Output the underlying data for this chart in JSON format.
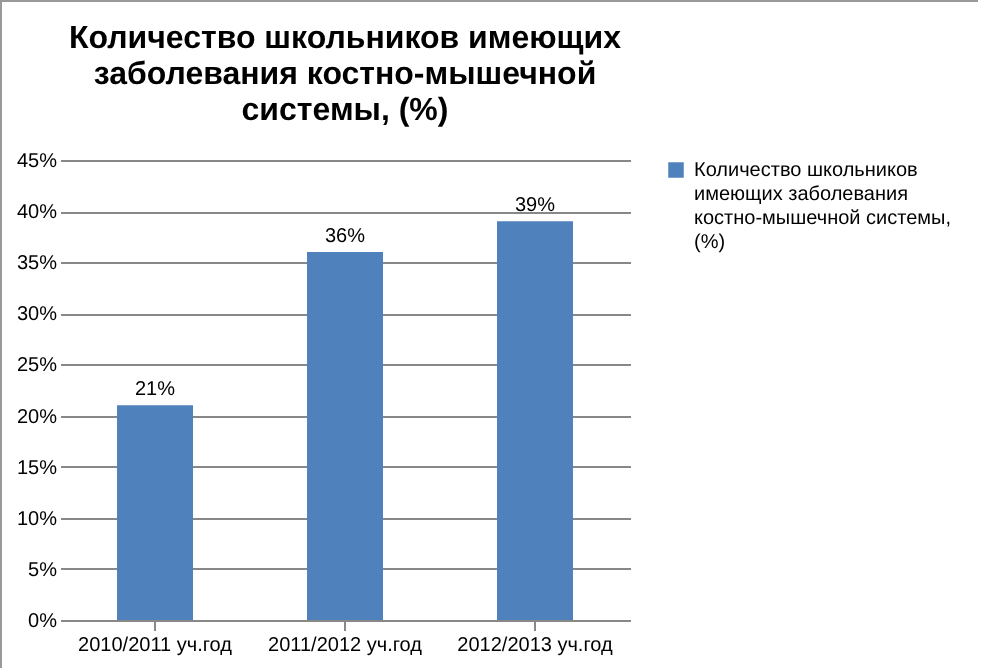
{
  "chart_data": {
    "type": "bar",
    "title": "Количество школьников имеющих заболевания костно-мышечной системы, (%)",
    "categories": [
      "2010/2011 уч.год",
      "2011/2012 уч.год",
      "2012/2013 уч.год"
    ],
    "series": [
      {
        "name": "Количество школьников имеющих заболевания костно-мышечной системы, (%)",
        "color": "#4f81bd",
        "values": [
          21,
          36,
          39
        ],
        "value_labels": [
          "21%",
          "36%",
          "39%"
        ]
      }
    ],
    "ylim": [
      0,
      45
    ],
    "yticks": [
      {
        "value": 0,
        "label": "0%"
      },
      {
        "value": 5,
        "label": "5%"
      },
      {
        "value": 10,
        "label": "10%"
      },
      {
        "value": 15,
        "label": "15%"
      },
      {
        "value": 20,
        "label": "20%"
      },
      {
        "value": 25,
        "label": "25%"
      },
      {
        "value": 30,
        "label": "30%"
      },
      {
        "value": 35,
        "label": "35%"
      },
      {
        "value": 40,
        "label": "40%"
      },
      {
        "value": 45,
        "label": "45%"
      }
    ],
    "grid": "y",
    "legend": "right"
  }
}
